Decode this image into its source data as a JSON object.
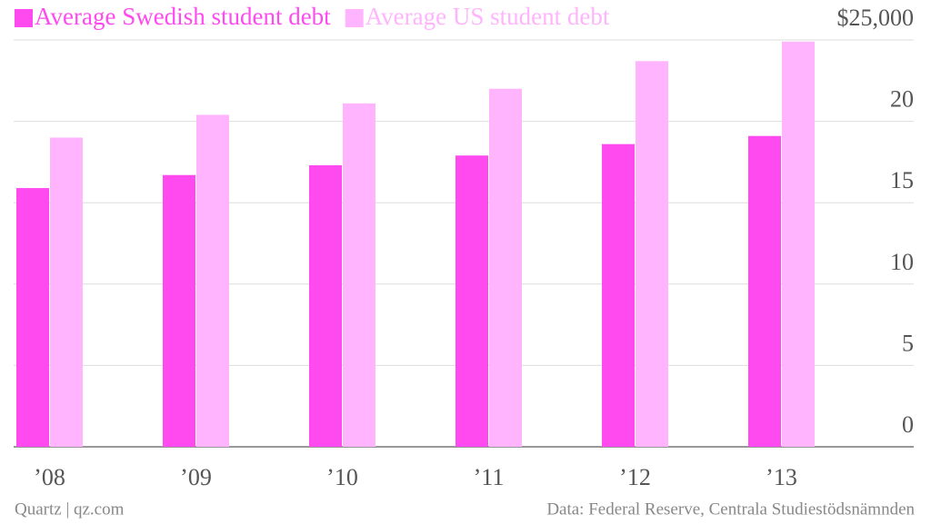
{
  "chart_data": {
    "type": "bar",
    "categories": [
      "’08",
      "’09",
      "’10",
      "’11",
      "’12",
      "’13"
    ],
    "series": [
      {
        "name": "Average Swedish student debt",
        "color": "#ff4af0",
        "values": [
          15.9,
          16.7,
          17.3,
          17.9,
          18.6,
          19.1
        ]
      },
      {
        "name": "Average US student debt",
        "color": "#ffb4fd",
        "values": [
          19.0,
          20.4,
          21.1,
          22.0,
          23.7,
          24.9
        ]
      }
    ],
    "ylim": [
      0,
      25
    ],
    "yticks": [
      0,
      5,
      10,
      15,
      20,
      {
        "value": 25,
        "label": "$25,000"
      }
    ],
    "grid": true,
    "source": "Data: Federal Reserve, Centrala Studiestödsnämnden",
    "credit": "Quartz | qz.com"
  }
}
